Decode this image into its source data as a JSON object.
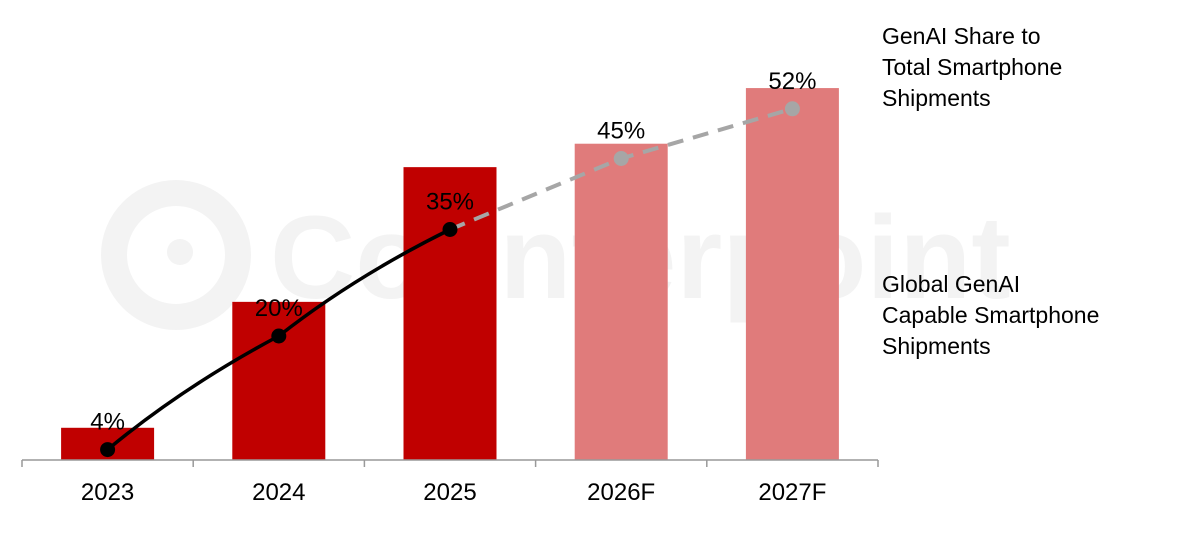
{
  "watermark": {
    "text": "Counterpoint"
  },
  "legend": {
    "line": [
      "GenAI Share to",
      "Total Smartphone",
      "Shipments"
    ],
    "bars": [
      "Global GenAI",
      "Capable Smartphone",
      "Shipments"
    ]
  },
  "colors": {
    "bar_actual": "#c00000",
    "bar_forecast": "#e07b7b",
    "line_actual": "#000000",
    "line_forecast": "#a6a6a6",
    "axis": "#999999"
  },
  "chart_data": {
    "type": "bar",
    "categories": [
      "2023",
      "2024",
      "2025",
      "2026F",
      "2027F"
    ],
    "series": [
      {
        "name": "Global GenAI Capable Smartphone Shipments",
        "type": "bar",
        "values": [
          11,
          54,
          100,
          108,
          127
        ],
        "forecast": [
          false,
          false,
          false,
          true,
          true
        ]
      },
      {
        "name": "GenAI Share to Total Smartphone Shipments",
        "type": "line",
        "values": [
          4,
          20,
          35,
          45,
          52
        ],
        "labels": [
          "4%",
          "20%",
          "35%",
          "45%",
          "52%"
        ],
        "forecast": [
          false,
          false,
          false,
          true,
          true
        ]
      }
    ],
    "title": "",
    "xlabel": "",
    "ylabel": "",
    "bar_ylim": [
      0,
      140
    ],
    "line_ylim": [
      0,
      60
    ],
    "grid": false,
    "legend_position": "right"
  }
}
